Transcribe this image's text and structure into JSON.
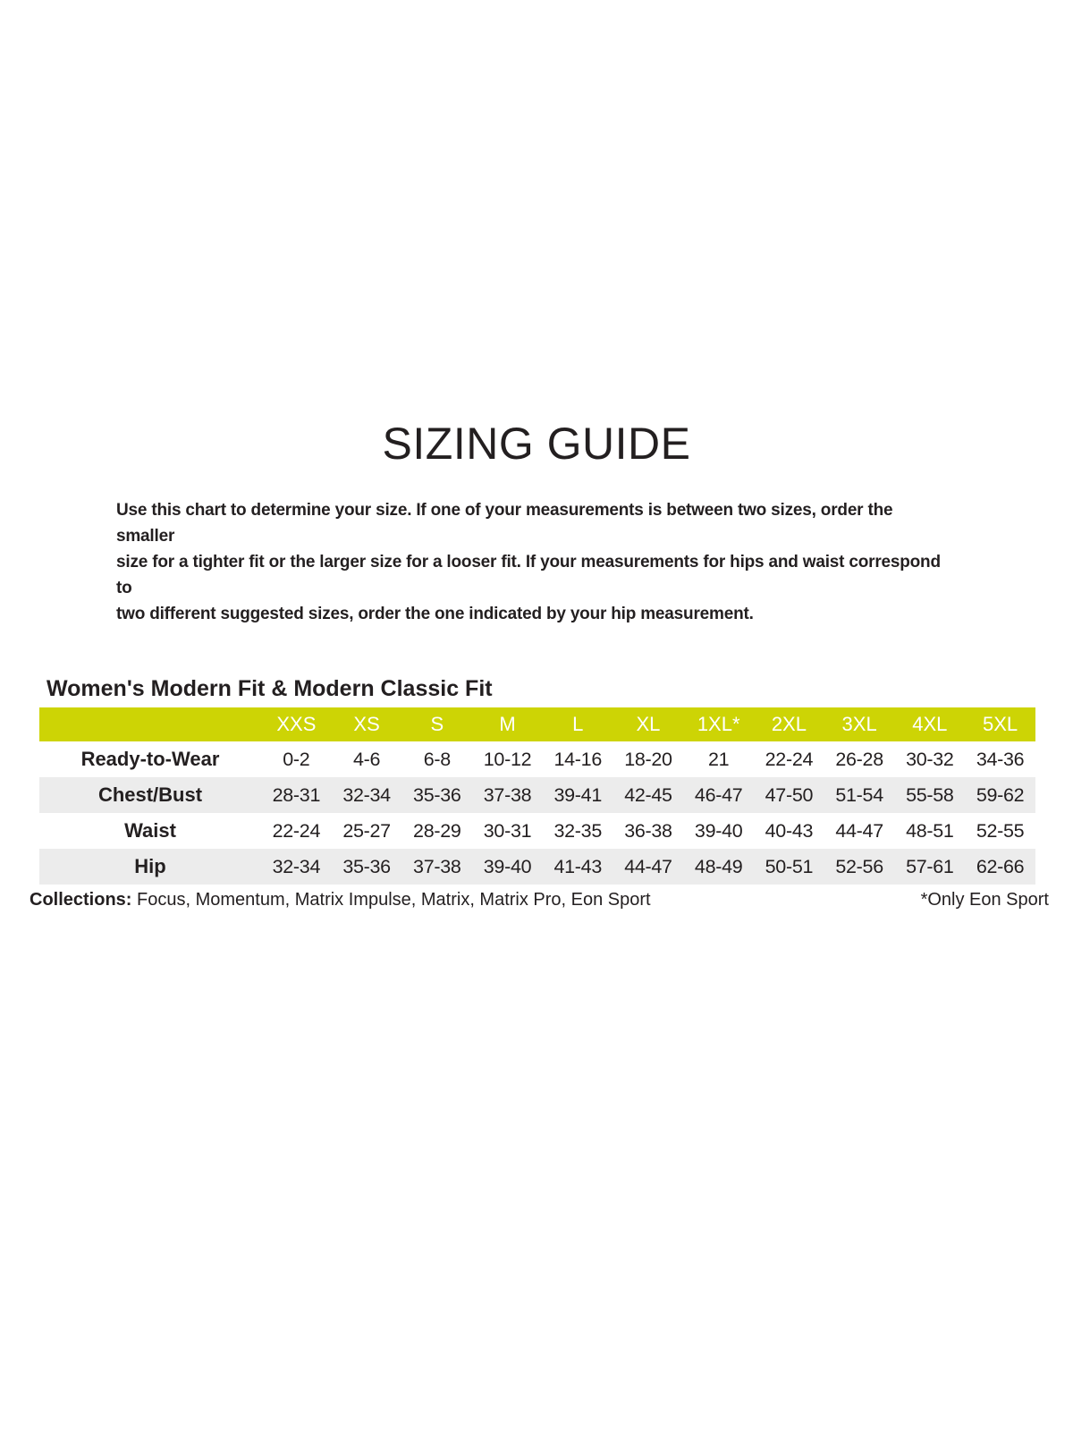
{
  "page": {
    "title": "SIZING GUIDE",
    "intro": "Use this chart to determine your size. If one of your measurements is between two sizes, order the smaller\nsize for a tighter fit or the larger size for a looser fit. If your measurements for hips and waist correspond to\ntwo different suggested sizes, order the one indicated by your hip measurement."
  },
  "colors": {
    "accent": "#cdd405",
    "row_alt": "#ececec",
    "text": "#231f20",
    "header_text": "#ffffff"
  },
  "section": {
    "title": "Women's Modern Fit & Modern Classic Fit"
  },
  "table": {
    "columns": [
      "XXS",
      "XS",
      "S",
      "M",
      "L",
      "XL",
      "1XL*",
      "2XL",
      "3XL",
      "4XL",
      "5XL"
    ],
    "rows": [
      {
        "label": "Ready-to-Wear",
        "values": [
          "0-2",
          "4-6",
          "6-8",
          "10-12",
          "14-16",
          "18-20",
          "21",
          "22-24",
          "26-28",
          "30-32",
          "34-36"
        ]
      },
      {
        "label": "Chest/Bust",
        "values": [
          "28-31",
          "32-34",
          "35-36",
          "37-38",
          "39-41",
          "42-45",
          "46-47",
          "47-50",
          "51-54",
          "55-58",
          "59-62"
        ]
      },
      {
        "label": "Waist",
        "values": [
          "22-24",
          "25-27",
          "28-29",
          "30-31",
          "32-35",
          "36-38",
          "39-40",
          "40-43",
          "44-47",
          "48-51",
          "52-55"
        ]
      },
      {
        "label": "Hip",
        "values": [
          "32-34",
          "35-36",
          "37-38",
          "39-40",
          "41-43",
          "44-47",
          "48-49",
          "50-51",
          "52-56",
          "57-61",
          "62-66"
        ]
      }
    ]
  },
  "footer": {
    "collections_label": "Collections:",
    "collections_list": " Focus, Momentum, Matrix Impulse, Matrix, Matrix Pro, Eon Sport",
    "note": "*Only Eon Sport"
  }
}
